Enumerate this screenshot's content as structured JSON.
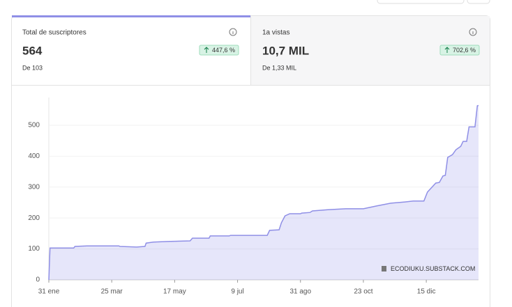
{
  "cards": [
    {
      "title": "Total de suscriptores",
      "value": "564",
      "change": "447,6 %",
      "sub": "De 103"
    },
    {
      "title": "1a vistas",
      "value": "10,7 MIL",
      "change": "702,6 %",
      "sub": "De 1,33 MIL"
    }
  ],
  "chart_data": {
    "type": "area",
    "x": [
      0,
      1,
      21,
      22,
      32,
      59,
      60,
      74,
      81,
      82,
      88,
      100,
      119,
      121,
      135,
      136,
      152,
      153,
      184,
      186,
      194,
      196,
      199,
      203,
      212,
      213,
      220,
      222,
      235,
      250,
      265,
      276,
      288,
      300,
      307,
      316,
      319,
      326,
      329,
      332,
      334,
      336,
      340,
      343,
      347,
      349,
      352,
      354,
      359,
      361,
      362
    ],
    "series": [
      {
        "color": "#8f8fe6",
        "values": [
          0,
          103,
          103,
          108,
          110,
          110,
          108,
          106,
          108,
          119,
          122,
          124,
          126,
          135,
          135,
          142,
          142,
          144,
          144,
          160,
          162,
          185,
          207,
          214,
          214,
          216,
          218,
          223,
          227,
          230,
          230,
          239,
          248,
          252,
          255,
          255,
          284,
          313,
          315,
          336,
          338,
          396,
          405,
          421,
          432,
          448,
          448,
          495,
          495,
          563,
          564
        ]
      }
    ],
    "xlim": [
      0,
      362
    ],
    "xticks": [
      {
        "value": 0,
        "label": "31 ene"
      },
      {
        "value": 53,
        "label": "25 mar"
      },
      {
        "value": 106,
        "label": "17 may"
      },
      {
        "value": 159,
        "label": "9 jul"
      },
      {
        "value": 212,
        "label": "31 ago"
      },
      {
        "value": 265,
        "label": "23 oct"
      },
      {
        "value": 318,
        "label": "15 dic"
      }
    ],
    "ylim": [
      0,
      590
    ],
    "yticks": [
      0,
      100,
      200,
      300,
      400,
      500
    ],
    "grid": true,
    "annotation": "ECODIUKU.SUBSTACK.COM"
  }
}
